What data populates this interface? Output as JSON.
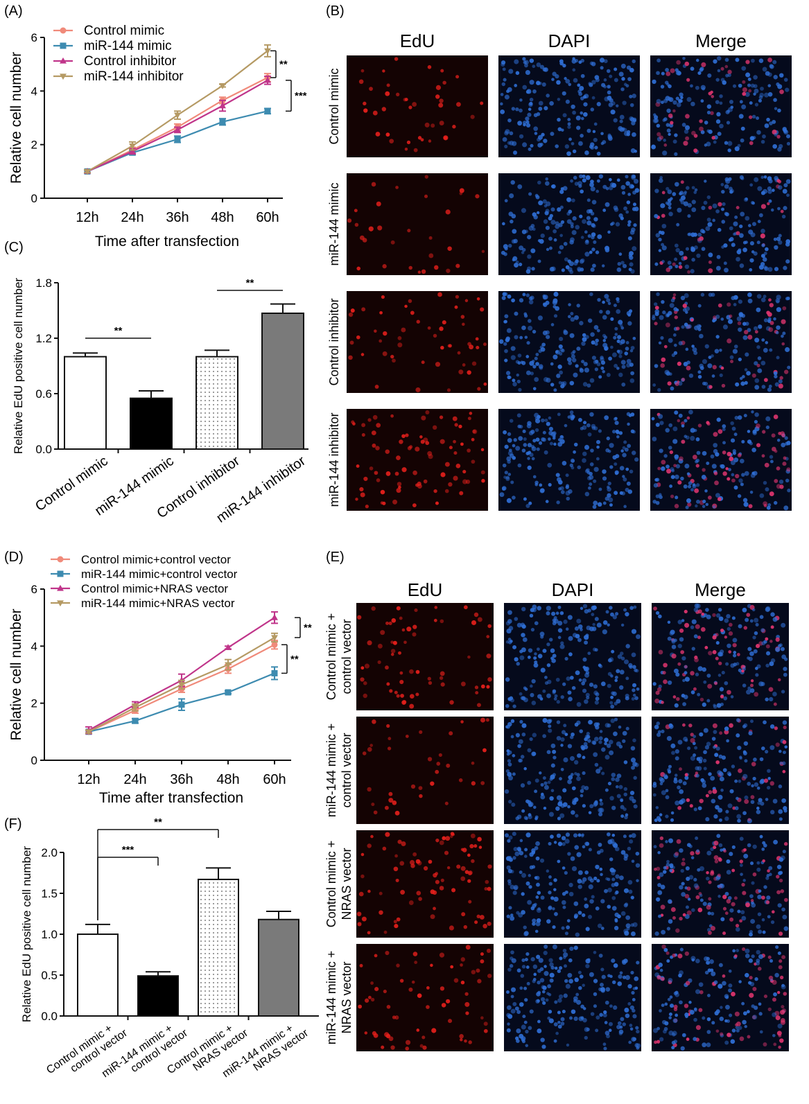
{
  "chart_data": [
    {
      "panel": "(A)",
      "type": "line",
      "categories": [
        "12h",
        "24h",
        "36h",
        "48h",
        "60h"
      ],
      "xlabel": "Time after transfection",
      "ylabel": "Relative cell number",
      "ylim": [
        0,
        6
      ],
      "yticks": [
        "0",
        "2",
        "4",
        "6"
      ],
      "legend": "top-left",
      "series": [
        {
          "name": "Control mimic",
          "color": "#f08a7a",
          "marker": "circle",
          "values": [
            1.0,
            1.8,
            2.65,
            3.65,
            4.5
          ],
          "err": [
            0.05,
            0.1,
            0.12,
            0.12,
            0.15
          ]
        },
        {
          "name": "miR-144 mimic",
          "color": "#3d8bb0",
          "marker": "square",
          "values": [
            1.0,
            1.7,
            2.2,
            2.85,
            3.25
          ],
          "err": [
            0.05,
            0.08,
            0.12,
            0.12,
            0.1
          ]
        },
        {
          "name": "Control inhibitor",
          "color": "#c0358a",
          "marker": "triangle-up",
          "values": [
            1.0,
            1.75,
            2.55,
            3.45,
            4.4
          ],
          "err": [
            0.05,
            0.1,
            0.1,
            0.2,
            0.15
          ]
        },
        {
          "name": "miR-144 inhibitor",
          "color": "#b59a64",
          "marker": "triangle-down",
          "values": [
            1.0,
            1.95,
            3.1,
            4.2,
            5.5
          ],
          "err": [
            0.05,
            0.15,
            0.15,
            0.05,
            0.22
          ]
        }
      ],
      "significance": [
        {
          "label": "**",
          "from": 3,
          "to": 0
        },
        {
          "label": "***",
          "from": 2,
          "to": 1
        }
      ]
    },
    {
      "panel": "(C)",
      "type": "bar",
      "categories": [
        "Control mimic",
        "miR-144 mimic",
        "Control inhibitor",
        "miR-144 inhibitor"
      ],
      "values": [
        1.0,
        0.55,
        1.0,
        1.47
      ],
      "err": [
        0.04,
        0.08,
        0.07,
        0.1
      ],
      "fills": [
        "white",
        "black",
        "dots",
        "gray"
      ],
      "ylabel": "Relative EdU positive cell number",
      "ylim": [
        0,
        1.8
      ],
      "yticks": [
        "0.0",
        "0.6",
        "1.2",
        "1.8"
      ],
      "significance": [
        {
          "label": "**",
          "from": 0,
          "to": 1
        },
        {
          "label": "**",
          "from": 2,
          "to": 3
        }
      ]
    },
    {
      "panel": "(D)",
      "type": "line",
      "categories": [
        "12h",
        "24h",
        "36h",
        "48h",
        "60h"
      ],
      "xlabel": "Time after transfection",
      "ylabel": "Relative cell number",
      "ylim": [
        0,
        6
      ],
      "yticks": [
        "0",
        "2",
        "4",
        "6"
      ],
      "legend": "top-left",
      "series": [
        {
          "name": "Control mimic+control vector",
          "color": "#f08a7a",
          "marker": "circle",
          "values": [
            1.0,
            1.75,
            2.5,
            3.2,
            4.05
          ],
          "err": [
            0.05,
            0.1,
            0.12,
            0.15,
            0.15
          ]
        },
        {
          "name": "miR-144 mimic+control vector",
          "color": "#3d8bb0",
          "marker": "square",
          "values": [
            1.0,
            1.38,
            1.95,
            2.38,
            3.05
          ],
          "err": [
            0.05,
            0.08,
            0.2,
            0.05,
            0.22
          ]
        },
        {
          "name": "Control mimic+NRAS vector",
          "color": "#c0358a",
          "marker": "triangle-up",
          "values": [
            1.05,
            1.95,
            2.8,
            3.95,
            5.0
          ],
          "err": [
            0.12,
            0.1,
            0.22,
            0.05,
            0.2
          ]
        },
        {
          "name": "miR-144 mimic+NRAS vector",
          "color": "#b59a64",
          "marker": "triangle-down",
          "values": [
            1.0,
            1.85,
            2.65,
            3.35,
            4.3
          ],
          "err": [
            0.05,
            0.12,
            0.15,
            0.18,
            0.15
          ]
        }
      ],
      "significance": [
        {
          "label": "**",
          "from": 2,
          "to": 3
        },
        {
          "label": "**",
          "from": 0,
          "to": 1
        }
      ]
    },
    {
      "panel": "(F)",
      "type": "bar",
      "categories": [
        [
          "Control mimic +",
          "control vector"
        ],
        [
          "miR-144 mimic +",
          "control vector"
        ],
        [
          "Control mimic +",
          "NRAS vector"
        ],
        [
          "miR-144 mimic +",
          "NRAS vector"
        ]
      ],
      "values": [
        1.0,
        0.49,
        1.67,
        1.18
      ],
      "err": [
        0.12,
        0.05,
        0.14,
        0.1
      ],
      "fills": [
        "white",
        "black",
        "dots",
        "gray"
      ],
      "ylabel": "Relative EdU positive cell number",
      "ylim": [
        0,
        2.0
      ],
      "yticks": [
        "0.0",
        "0.5",
        "1.0",
        "1.5",
        "2.0"
      ],
      "significance": [
        {
          "label": "***",
          "from": 0,
          "to": 1
        },
        {
          "label": "**",
          "from": 0,
          "to": 2
        }
      ]
    }
  ],
  "micrographs": {
    "B": {
      "panel": "(B)",
      "columns": [
        "EdU",
        "DAPI",
        "Merge"
      ],
      "rows": [
        [
          "Control mimic"
        ],
        [
          "miR-144 mimic"
        ],
        [
          "Control inhibitor"
        ],
        [
          "miR-144 inhibitor"
        ]
      ],
      "edu_density": [
        0.35,
        0.25,
        0.45,
        0.7
      ]
    },
    "E": {
      "panel": "(E)",
      "columns": [
        "EdU",
        "DAPI",
        "Merge"
      ],
      "rows": [
        [
          "Control mimic +",
          "control vector"
        ],
        [
          "miR-144 mimic +",
          "control vector"
        ],
        [
          "Control mimic +",
          "NRAS vector"
        ],
        [
          "miR-144 mimic +",
          "NRAS vector"
        ]
      ],
      "edu_density": [
        0.55,
        0.3,
        0.7,
        0.55
      ]
    }
  },
  "colors": {
    "edu": "#e8201c",
    "dapi": "#2f6fd6",
    "merge": "#e0356f",
    "bar_gray": "#7a7a7a"
  }
}
